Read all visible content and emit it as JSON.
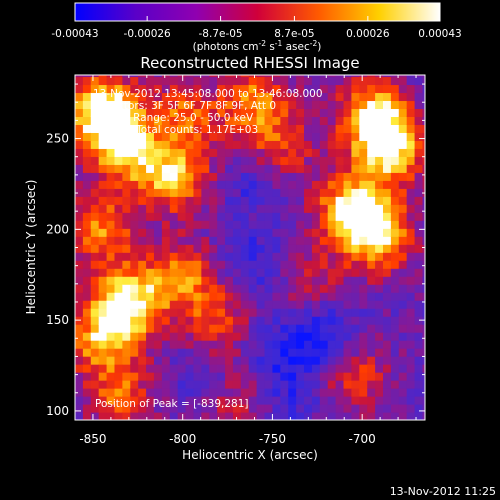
{
  "colorbar": {
    "tick_labels": [
      "-0.00043",
      "-0.00026",
      "-8.7e-05",
      "8.7e-05",
      "0.00026",
      "0.00043"
    ],
    "tick_values": [
      -0.00043,
      -0.00026,
      -8.7e-05,
      8.7e-05,
      0.00026,
      0.00043
    ],
    "range": [
      -0.00043,
      0.00043
    ],
    "unit_main": "(photons cm",
    "unit_exp1": "-2",
    "unit_mid": " s",
    "unit_exp2": "-1",
    "unit_end": " asec",
    "unit_exp3": "-2",
    "unit_close": ")",
    "colors": [
      "#0000ff",
      "#5a00c8",
      "#9000b0",
      "#d0003a",
      "#ff5a00",
      "#ffd000",
      "#ffffff"
    ]
  },
  "footer_timestamp": "13-Nov-2012 11:25",
  "chart_data": {
    "type": "heatmap",
    "title": "Reconstructed RHESSI Image",
    "xlabel": "Heliocentric X (arcsec)",
    "ylabel": "Heliocentric Y (arcsec)",
    "xlim": [
      -860,
      -665
    ],
    "ylim": [
      95,
      285
    ],
    "x_ticks": [
      -850,
      -800,
      -750,
      -700
    ],
    "x_tick_labels": [
      "-850",
      "-800",
      "-750",
      "-700"
    ],
    "y_ticks": [
      100,
      150,
      200,
      250
    ],
    "y_tick_labels": [
      "100",
      "150",
      "200",
      "250"
    ],
    "info_lines": [
      "13-Nov-2012 13:45:08.000 to 13:46:08.000",
      "Detectors: 3F 5F 6F 7F 8F 9F, Att 0",
      "Energy Range: 25.0 - 50.0 keV",
      "Clean    Total counts: 1.17E+03"
    ],
    "peak_label": "Position of Peak = [-839,281]",
    "peak": [
      -839,
      281
    ],
    "hotspots": [
      {
        "x": -845,
        "y": 265,
        "amp": 1.0
      },
      {
        "x": -830,
        "y": 245,
        "amp": 0.8
      },
      {
        "x": -805,
        "y": 230,
        "amp": 0.75
      },
      {
        "x": -800,
        "y": 262,
        "amp": 0.55
      },
      {
        "x": -845,
        "y": 200,
        "amp": 0.6
      },
      {
        "x": -830,
        "y": 160,
        "amp": 0.9
      },
      {
        "x": -845,
        "y": 140,
        "amp": 0.65
      },
      {
        "x": -800,
        "y": 175,
        "amp": 0.55
      },
      {
        "x": -780,
        "y": 150,
        "amp": 0.45
      },
      {
        "x": -760,
        "y": 270,
        "amp": 0.6
      },
      {
        "x": -745,
        "y": 245,
        "amp": 0.4
      },
      {
        "x": -705,
        "y": 210,
        "amp": 0.95
      },
      {
        "x": -685,
        "y": 245,
        "amp": 0.9
      },
      {
        "x": -695,
        "y": 265,
        "amp": 0.7
      },
      {
        "x": -690,
        "y": 195,
        "amp": 0.65
      },
      {
        "x": -730,
        "y": 170,
        "amp": 0.3
      },
      {
        "x": -705,
        "y": 120,
        "amp": 0.45
      },
      {
        "x": -835,
        "y": 108,
        "amp": 0.5
      },
      {
        "x": -770,
        "y": 105,
        "amp": 0.3
      }
    ],
    "coldspots": [
      {
        "x": -720,
        "y": 140,
        "amp": 0.9
      },
      {
        "x": -745,
        "y": 135,
        "amp": 0.6
      },
      {
        "x": -760,
        "y": 180,
        "amp": 0.6
      },
      {
        "x": -815,
        "y": 250,
        "amp": 0.5
      },
      {
        "x": -760,
        "y": 225,
        "amp": 0.45
      },
      {
        "x": -740,
        "y": 110,
        "amp": 0.5
      },
      {
        "x": -790,
        "y": 120,
        "amp": 0.35
      }
    ]
  }
}
